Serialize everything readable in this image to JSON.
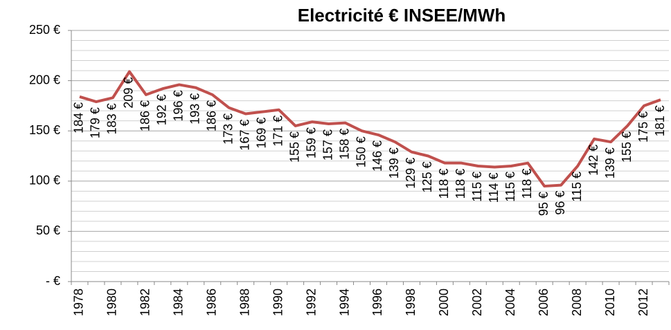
{
  "chart_data": {
    "type": "line",
    "title": "Electricité € INSEE/MWh",
    "categories": [
      "1978",
      null,
      "1980",
      null,
      "1982",
      null,
      "1984",
      null,
      "1986",
      null,
      "1988",
      null,
      "1990",
      null,
      "1992",
      null,
      "1994",
      null,
      "1996",
      null,
      "1998",
      null,
      "2000",
      null,
      "2002",
      null,
      "2004",
      null,
      "2006",
      null,
      "2008",
      null,
      "2010",
      null,
      "2012",
      null
    ],
    "series": [
      {
        "name": "Electricité € INSEE/MWh",
        "color": "#c0504d",
        "values": [
          184,
          179,
          183,
          209,
          186,
          192,
          196,
          193,
          186,
          173,
          167,
          169,
          171,
          155,
          159,
          157,
          158,
          150,
          146,
          139,
          129,
          125,
          118,
          118,
          115,
          114,
          115,
          118,
          95,
          96,
          115,
          142,
          139,
          155,
          175,
          181
        ],
        "value_labels": [
          "184 €",
          "179 €",
          "183 €",
          "209 €",
          "186 €",
          "192 €",
          "196 €",
          "193 €",
          "186 €",
          "173 €",
          "167 €",
          "169 €",
          "171 €",
          "155 €",
          "159 €",
          "157 €",
          "158 €",
          "150 €",
          "146 €",
          "139 €",
          "129 €",
          "125 €",
          "118 €",
          "118 €",
          "115 €",
          "114 €",
          "115 €",
          "118 €",
          "95 €",
          "96 €",
          "115 €",
          "142 €",
          "139 €",
          "155 €",
          "175 €",
          "181 €"
        ]
      }
    ],
    "ylim": [
      0,
      250
    ],
    "yticks": [
      {
        "value": 0,
        "label": "-  €"
      },
      {
        "value": 50,
        "label": "50 €"
      },
      {
        "value": 100,
        "label": "100 €"
      },
      {
        "value": 150,
        "label": "150 €"
      },
      {
        "value": 200,
        "label": "200 €"
      },
      {
        "value": 250,
        "label": "250 €"
      }
    ],
    "grid": true,
    "minor_grid_divisions": 5
  }
}
